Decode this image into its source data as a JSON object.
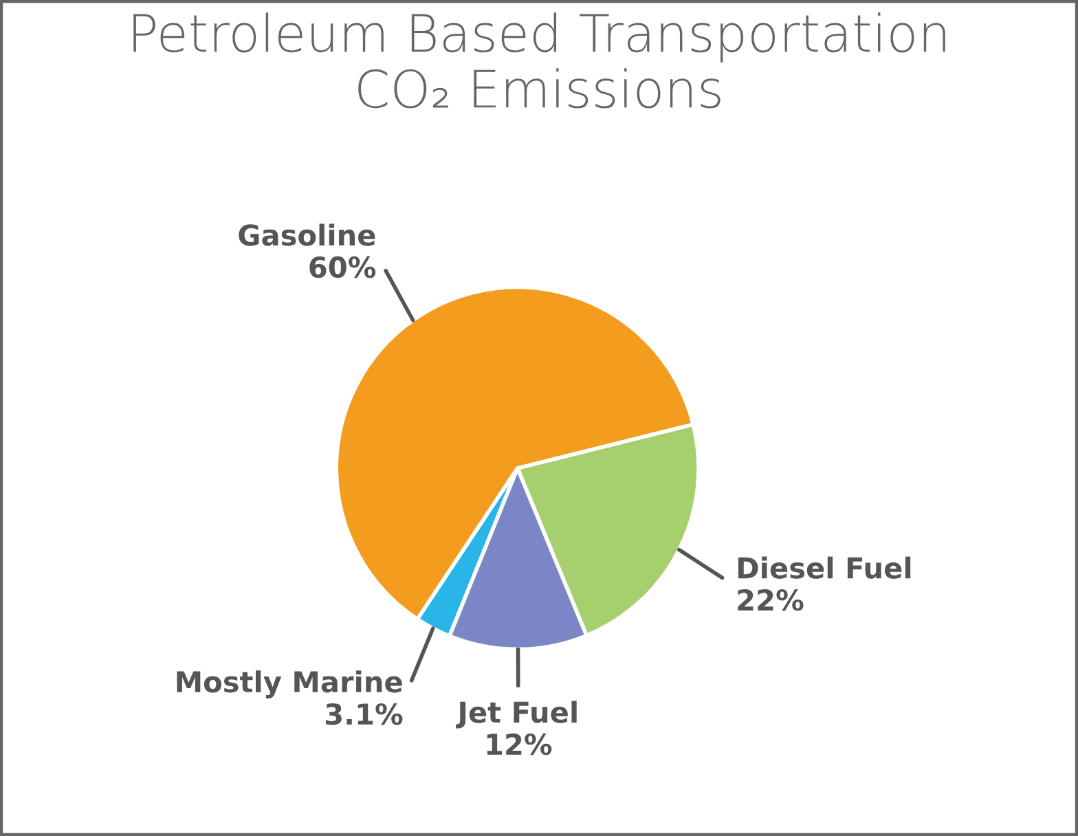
{
  "chart_data": {
    "type": "pie",
    "title": "Petroleum Based Transportation\nCO₂ Emissions",
    "categories": [
      "Diesel Fuel",
      "Jet Fuel",
      "Mostly Marine",
      "Gasoline"
    ],
    "values": [
      22,
      12,
      3.1,
      60
    ],
    "value_labels": [
      "22%",
      "12%",
      "3.1%",
      "60%"
    ],
    "colors": [
      "#a6cf6e",
      "#7b86c6",
      "#29b5e8",
      "#f39c1e"
    ]
  }
}
